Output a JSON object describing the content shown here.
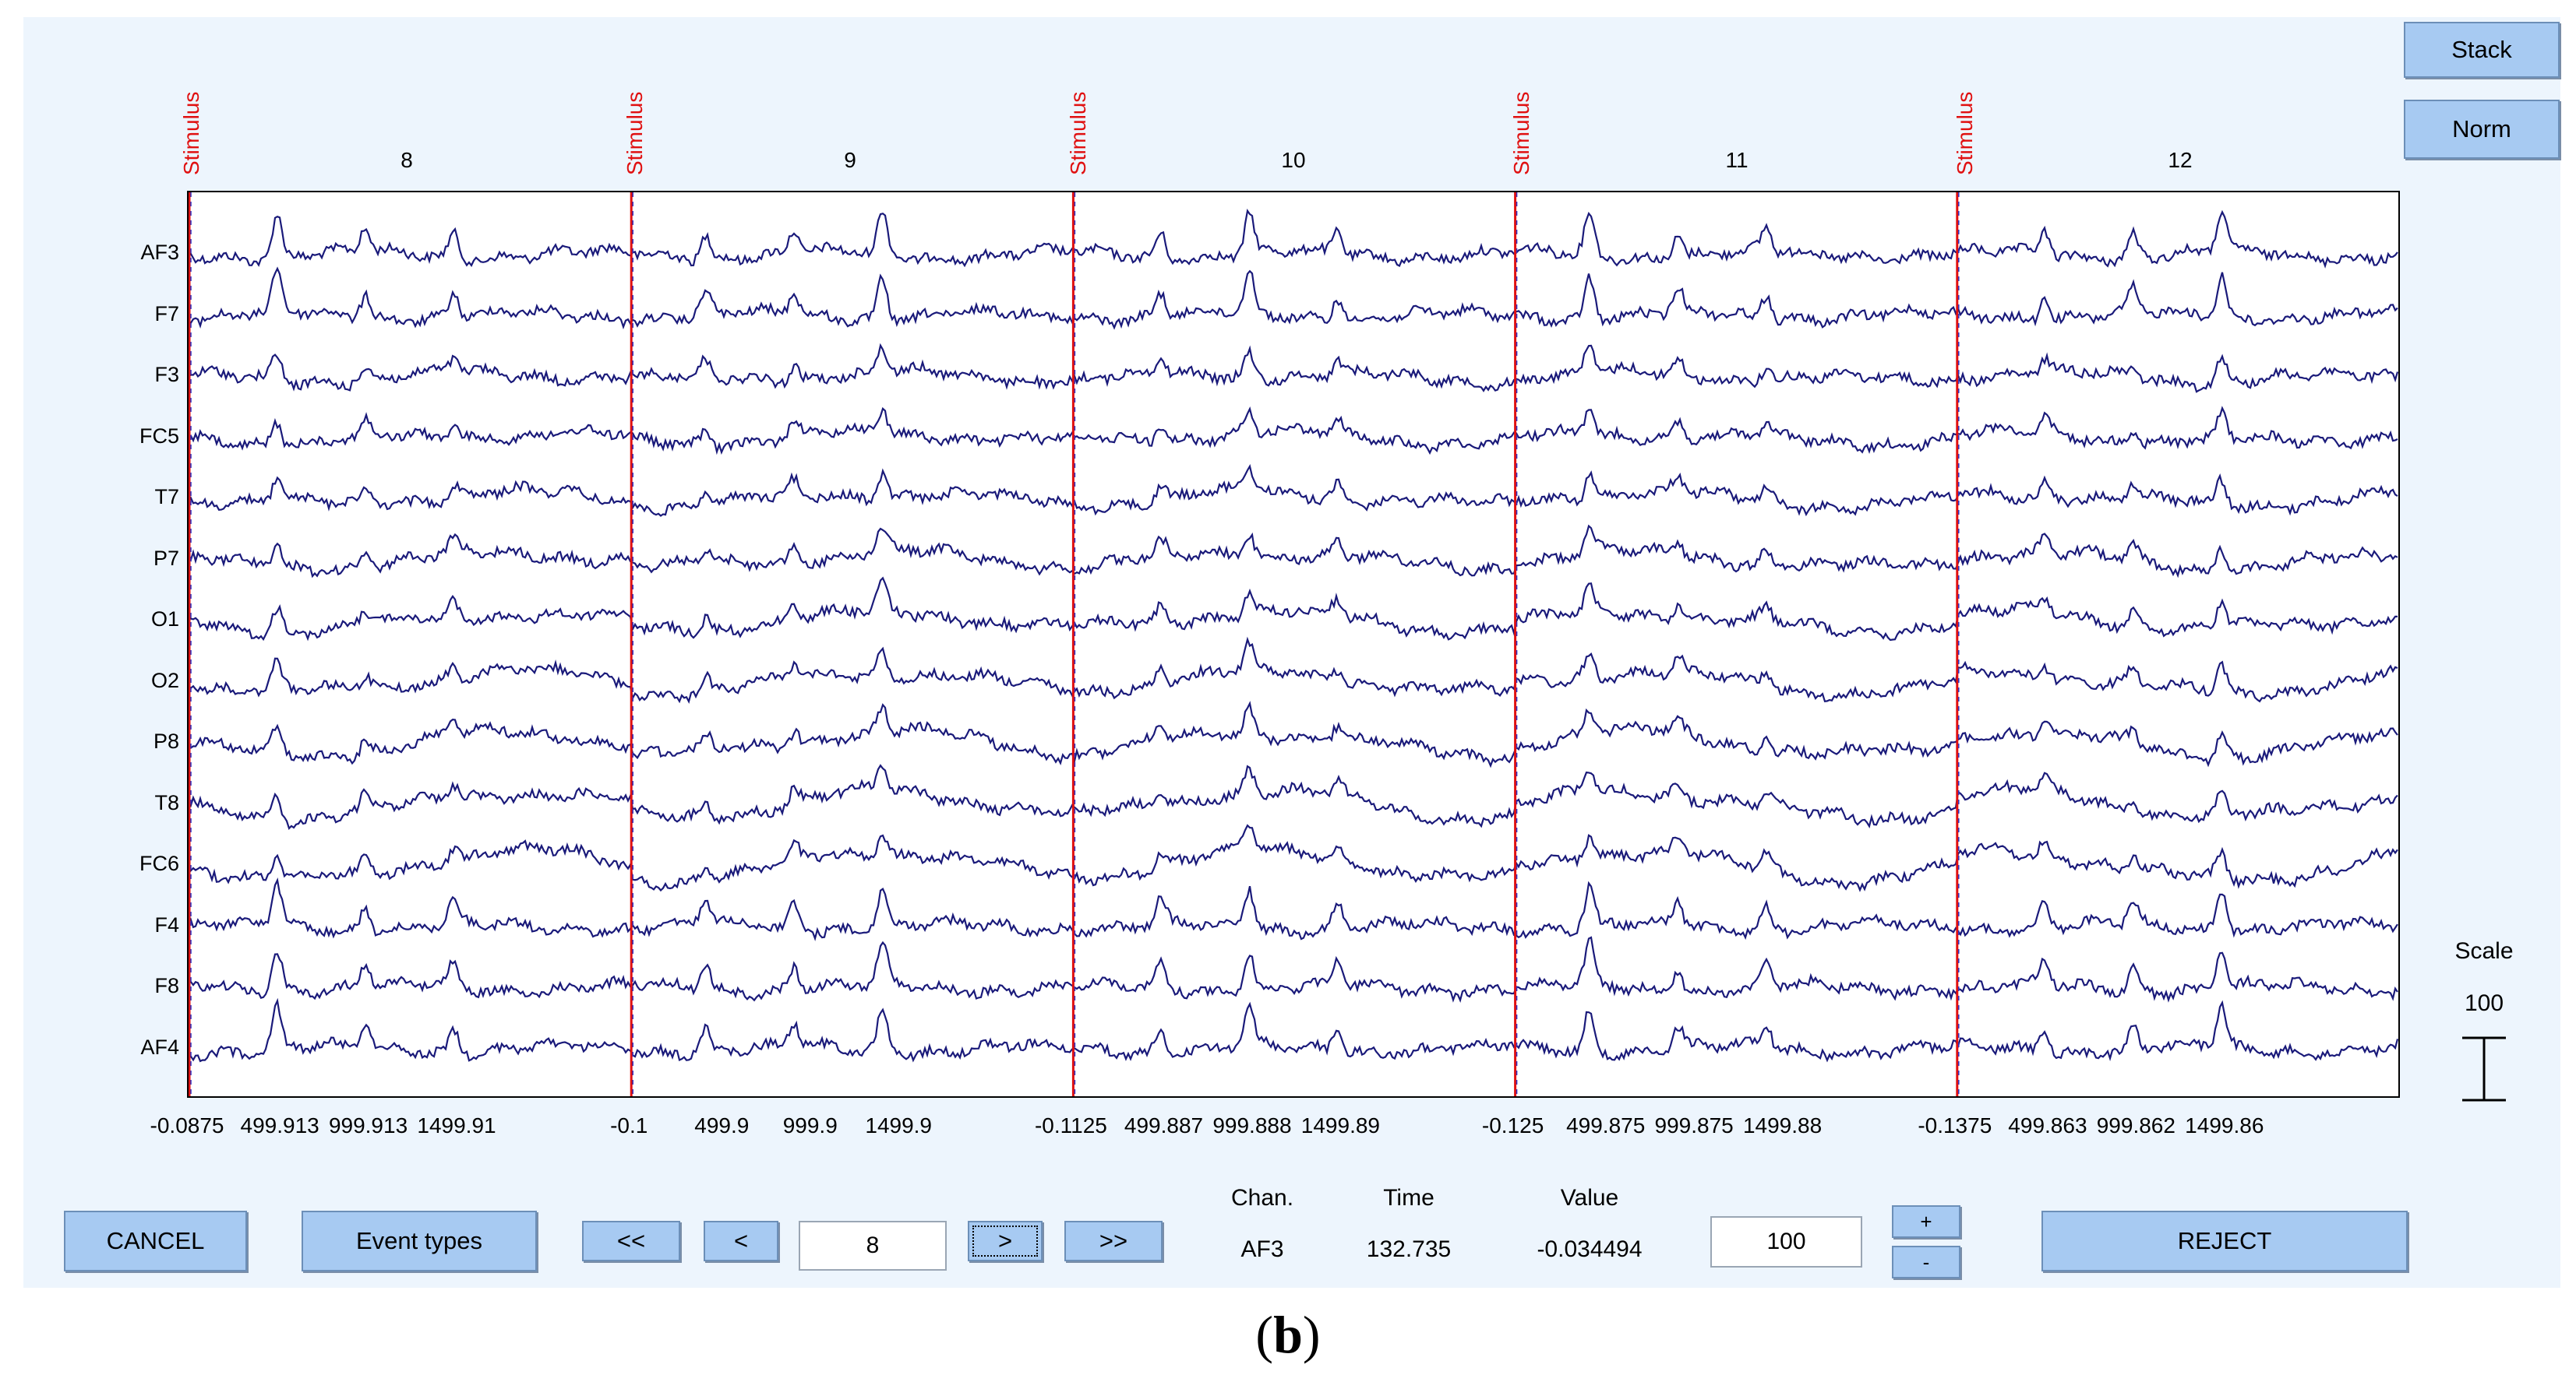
{
  "side_buttons": {
    "stack": "Stack",
    "norm": "Norm"
  },
  "channels": [
    "AF3",
    "F7",
    "F3",
    "FC5",
    "T7",
    "P7",
    "O1",
    "O2",
    "P8",
    "T8",
    "FC6",
    "F4",
    "F8",
    "AF4"
  ],
  "epochs": [
    {
      "number": "8",
      "marker": "Stimulus",
      "ticks": [
        "-0.0875",
        "499.913",
        "999.913",
        "1499.91"
      ]
    },
    {
      "number": "9",
      "marker": "Stimulus",
      "ticks": [
        "-0.1",
        "499.9",
        "999.9",
        "1499.9"
      ]
    },
    {
      "number": "10",
      "marker": "Stimulus",
      "ticks": [
        "-0.1125",
        "499.887",
        "999.888",
        "1499.89"
      ]
    },
    {
      "number": "11",
      "marker": "Stimulus",
      "ticks": [
        "-0.125",
        "499.875",
        "999.875",
        "1499.88"
      ]
    },
    {
      "number": "12",
      "marker": "Stimulus",
      "ticks": [
        "-0.1375",
        "499.863",
        "999.862",
        "1499.86"
      ]
    }
  ],
  "scale": {
    "label": "Scale",
    "value": "100"
  },
  "toolbar": {
    "cancel": "CANCEL",
    "event_types": "Event types",
    "first": "<<",
    "prev": "<",
    "epoch_input": "8",
    "next": ">",
    "last": ">>",
    "scale_input": "100",
    "plus": "+",
    "minus": "-",
    "reject": "REJECT"
  },
  "info": {
    "chan_label": "Chan.",
    "chan_value": "AF3",
    "time_label": "Time",
    "time_value": "132.735",
    "value_label": "Value",
    "value_value": "-0.034494"
  },
  "colors": {
    "trace": "#1a1a7a",
    "marker": "#e01010",
    "button": "#a7caf2",
    "background": "#edf5fd"
  },
  "caption": {
    "open": "(",
    "letter": "b",
    "close": ")"
  }
}
